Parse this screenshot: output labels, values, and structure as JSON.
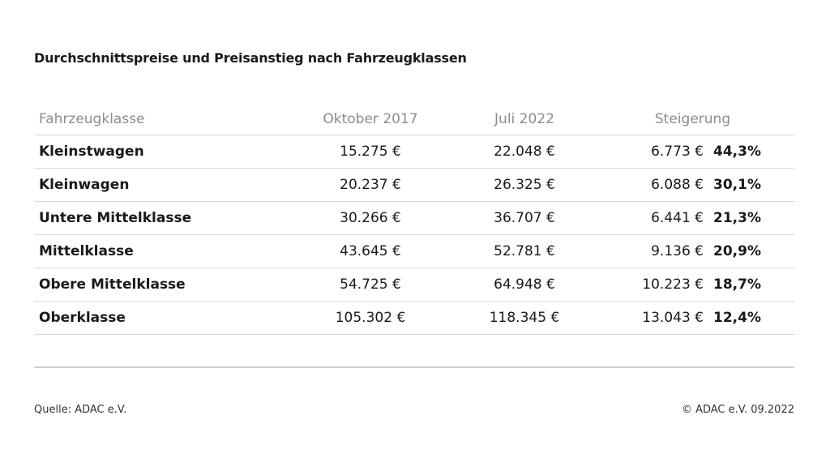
{
  "title": "Durchschnittspreise und Preisanstieg nach Fahrzeugklassen",
  "columns": {
    "class": "Fahrzeugklasse",
    "oct2017": "Oktober 2017",
    "jul2022": "Juli 2022",
    "increase": "Steigerung"
  },
  "rows": [
    {
      "class": "Kleinstwagen",
      "oct2017": "15.275 €",
      "jul2022": "22.048 €",
      "increase_abs": "6.773 €",
      "increase_pct": "44,3%"
    },
    {
      "class": "Kleinwagen",
      "oct2017": "20.237 €",
      "jul2022": "26.325 €",
      "increase_abs": "6.088 €",
      "increase_pct": "30,1%"
    },
    {
      "class": "Untere Mittelklasse",
      "oct2017": "30.266 €",
      "jul2022": "36.707 €",
      "increase_abs": "6.441 €",
      "increase_pct": "21,3%"
    },
    {
      "class": "Mittelklasse",
      "oct2017": "43.645 €",
      "jul2022": "52.781 €",
      "increase_abs": "9.136 €",
      "increase_pct": "20,9%"
    },
    {
      "class": "Obere Mittelklasse",
      "oct2017": "54.725 €",
      "jul2022": "64.948 €",
      "increase_abs": "10.223 €",
      "increase_pct": "18,7%"
    },
    {
      "class": "Oberklasse",
      "oct2017": "105.302 €",
      "jul2022": "118.345 €",
      "increase_abs": "13.043 €",
      "increase_pct": "12,4%"
    }
  ],
  "footer": {
    "source": "Quelle: ADAC e.V.",
    "copyright": "© ADAC e.V. 09.2022"
  }
}
